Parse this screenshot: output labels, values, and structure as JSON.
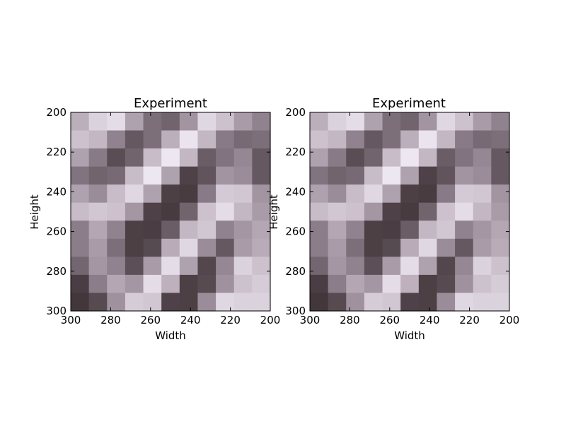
{
  "chart_data": [
    {
      "type": "heatmap",
      "title": "Experiment",
      "xlabel": "Width",
      "ylabel": "Height",
      "xlim": [
        300,
        200
      ],
      "ylim": [
        300,
        200
      ],
      "xticks": [
        300,
        280,
        260,
        240,
        220,
        200
      ],
      "yticks": [
        200,
        220,
        240,
        260,
        280,
        300
      ],
      "colormap": "bone_pink",
      "grid": [
        [
          0.75,
          0.88,
          0.92,
          0.7,
          0.5,
          0.45,
          0.65,
          0.9,
          0.82,
          0.68,
          0.58
        ],
        [
          0.82,
          0.78,
          0.58,
          0.4,
          0.5,
          0.75,
          0.95,
          0.78,
          0.55,
          0.48,
          0.5
        ],
        [
          0.7,
          0.55,
          0.35,
          0.45,
          0.8,
          0.96,
          0.78,
          0.42,
          0.52,
          0.6,
          0.4
        ],
        [
          0.52,
          0.45,
          0.48,
          0.8,
          0.96,
          0.7,
          0.3,
          0.38,
          0.65,
          0.62,
          0.4
        ],
        [
          0.7,
          0.62,
          0.8,
          0.9,
          0.7,
          0.28,
          0.25,
          0.55,
          0.85,
          0.84,
          0.65
        ],
        [
          0.8,
          0.84,
          0.82,
          0.66,
          0.3,
          0.24,
          0.45,
          0.82,
          0.92,
          0.78,
          0.68
        ],
        [
          0.56,
          0.72,
          0.58,
          0.28,
          0.26,
          0.42,
          0.78,
          0.84,
          0.58,
          0.66,
          0.72
        ],
        [
          0.56,
          0.68,
          0.5,
          0.28,
          0.34,
          0.74,
          0.9,
          0.62,
          0.4,
          0.68,
          0.74
        ],
        [
          0.46,
          0.66,
          0.58,
          0.36,
          0.68,
          0.92,
          0.7,
          0.32,
          0.6,
          0.88,
          0.82
        ],
        [
          0.26,
          0.56,
          0.72,
          0.66,
          0.92,
          0.76,
          0.28,
          0.34,
          0.64,
          0.82,
          0.86
        ],
        [
          0.2,
          0.34,
          0.64,
          0.86,
          0.84,
          0.3,
          0.28,
          0.62,
          0.9,
          0.88,
          0.88
        ]
      ]
    },
    {
      "type": "heatmap",
      "title": "Experiment",
      "xlabel": "Width",
      "ylabel": "Height",
      "xlim": [
        300,
        200
      ],
      "ylim": [
        300,
        200
      ],
      "xticks": [
        300,
        280,
        260,
        240,
        220,
        200
      ],
      "yticks": [
        200,
        220,
        240,
        260,
        280,
        300
      ],
      "colormap": "bone_pink",
      "grid": [
        [
          0.75,
          0.88,
          0.92,
          0.7,
          0.5,
          0.45,
          0.65,
          0.9,
          0.82,
          0.68,
          0.58
        ],
        [
          0.82,
          0.78,
          0.58,
          0.4,
          0.5,
          0.75,
          0.95,
          0.78,
          0.55,
          0.48,
          0.5
        ],
        [
          0.7,
          0.55,
          0.35,
          0.45,
          0.8,
          0.96,
          0.78,
          0.42,
          0.52,
          0.6,
          0.4
        ],
        [
          0.52,
          0.45,
          0.48,
          0.8,
          0.96,
          0.7,
          0.3,
          0.38,
          0.65,
          0.62,
          0.4
        ],
        [
          0.7,
          0.62,
          0.8,
          0.9,
          0.7,
          0.28,
          0.25,
          0.55,
          0.85,
          0.84,
          0.65
        ],
        [
          0.8,
          0.84,
          0.82,
          0.66,
          0.3,
          0.24,
          0.45,
          0.82,
          0.92,
          0.78,
          0.68
        ],
        [
          0.56,
          0.72,
          0.58,
          0.28,
          0.26,
          0.42,
          0.78,
          0.84,
          0.58,
          0.66,
          0.72
        ],
        [
          0.56,
          0.68,
          0.5,
          0.28,
          0.34,
          0.74,
          0.9,
          0.62,
          0.4,
          0.68,
          0.74
        ],
        [
          0.46,
          0.66,
          0.58,
          0.36,
          0.68,
          0.92,
          0.7,
          0.32,
          0.6,
          0.88,
          0.82
        ],
        [
          0.26,
          0.56,
          0.72,
          0.66,
          0.92,
          0.76,
          0.28,
          0.34,
          0.64,
          0.82,
          0.86
        ],
        [
          0.2,
          0.34,
          0.64,
          0.86,
          0.84,
          0.3,
          0.28,
          0.62,
          0.9,
          0.88,
          0.88
        ]
      ]
    }
  ]
}
